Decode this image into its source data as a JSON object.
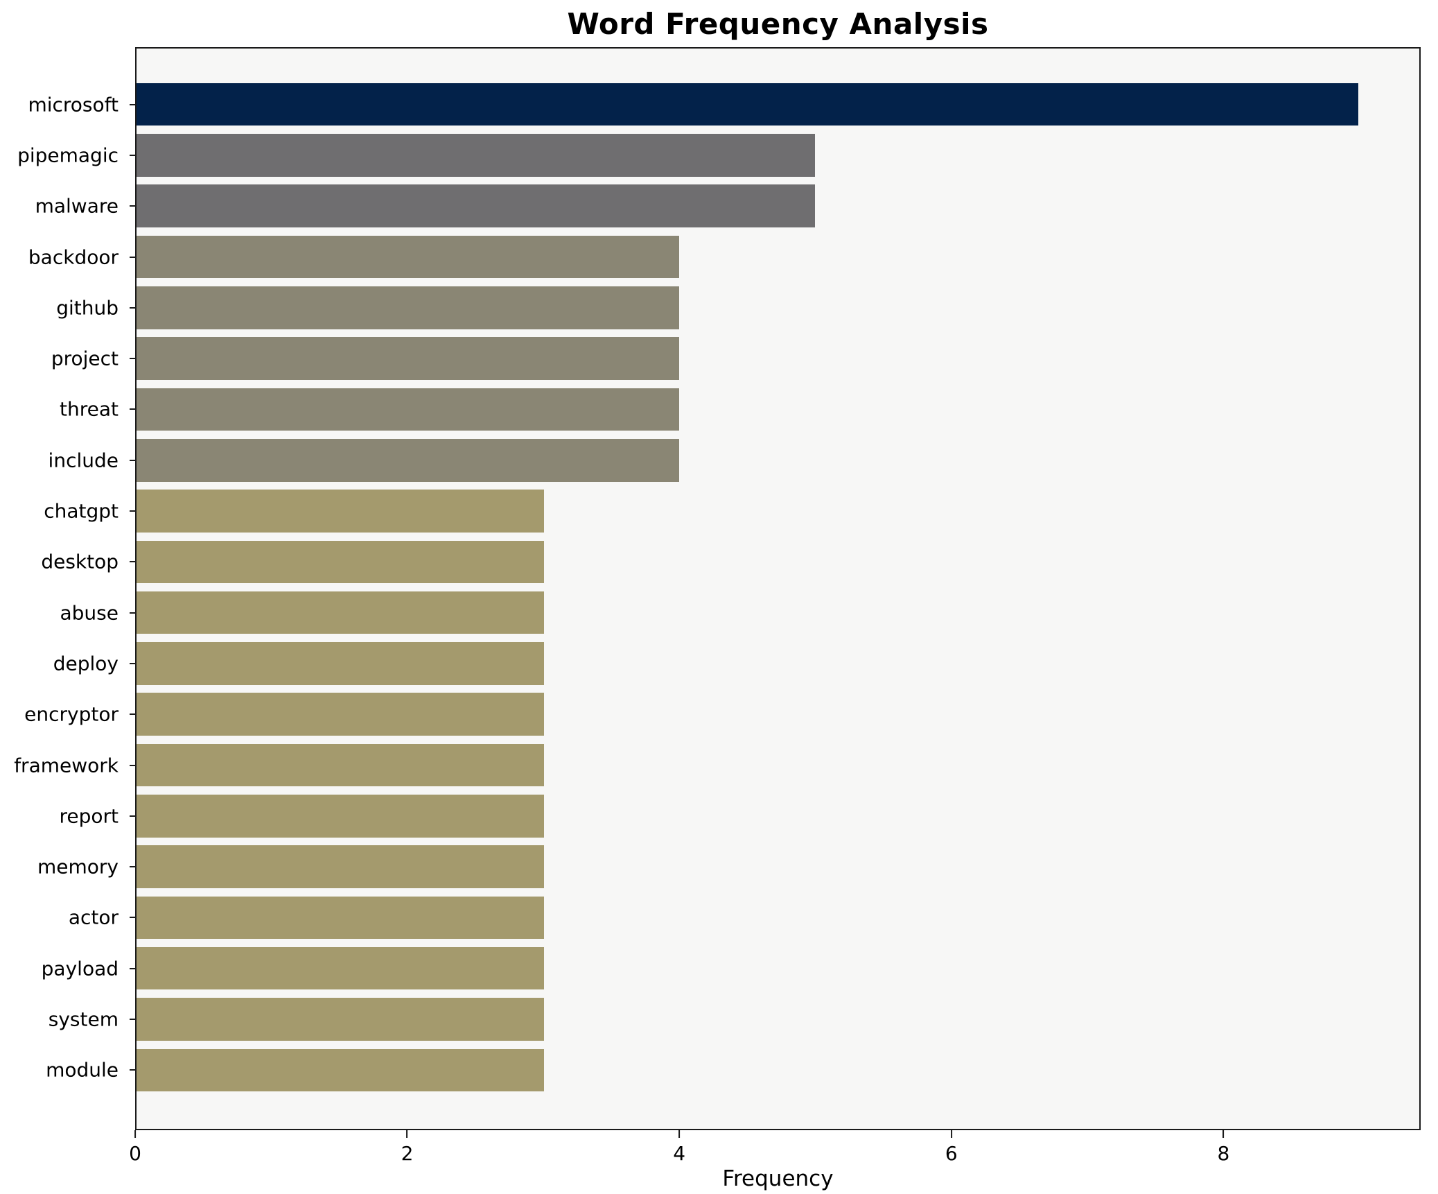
{
  "chart_data": {
    "type": "bar",
    "orientation": "horizontal",
    "title": "Word Frequency Analysis",
    "xlabel": "Frequency",
    "ylabel": "",
    "categories": [
      "microsoft",
      "pipemagic",
      "malware",
      "backdoor",
      "github",
      "project",
      "threat",
      "include",
      "chatgpt",
      "desktop",
      "abuse",
      "deploy",
      "encryptor",
      "framework",
      "report",
      "memory",
      "actor",
      "payload",
      "system",
      "module"
    ],
    "values": [
      9,
      5,
      5,
      4,
      4,
      4,
      4,
      4,
      3,
      3,
      3,
      3,
      3,
      3,
      3,
      3,
      3,
      3,
      3,
      3
    ],
    "bar_colors": [
      "#03224a",
      "#6f6e70",
      "#6f6e70",
      "#8a8674",
      "#8a8674",
      "#8a8674",
      "#8a8674",
      "#8a8674",
      "#a49a6d",
      "#a49a6d",
      "#a49a6d",
      "#a49a6d",
      "#a49a6d",
      "#a49a6d",
      "#a49a6d",
      "#a49a6d",
      "#a49a6d",
      "#a49a6d",
      "#a49a6d",
      "#a49a6d"
    ],
    "xticks": [
      0,
      2,
      4,
      6,
      8
    ],
    "xlim": [
      0,
      9.45
    ],
    "grid": false,
    "legend": null,
    "plot_background": "#f7f7f6",
    "figure_background": "#ffffff",
    "spine_color": "#1a1a1a",
    "text_color": "#000000"
  }
}
